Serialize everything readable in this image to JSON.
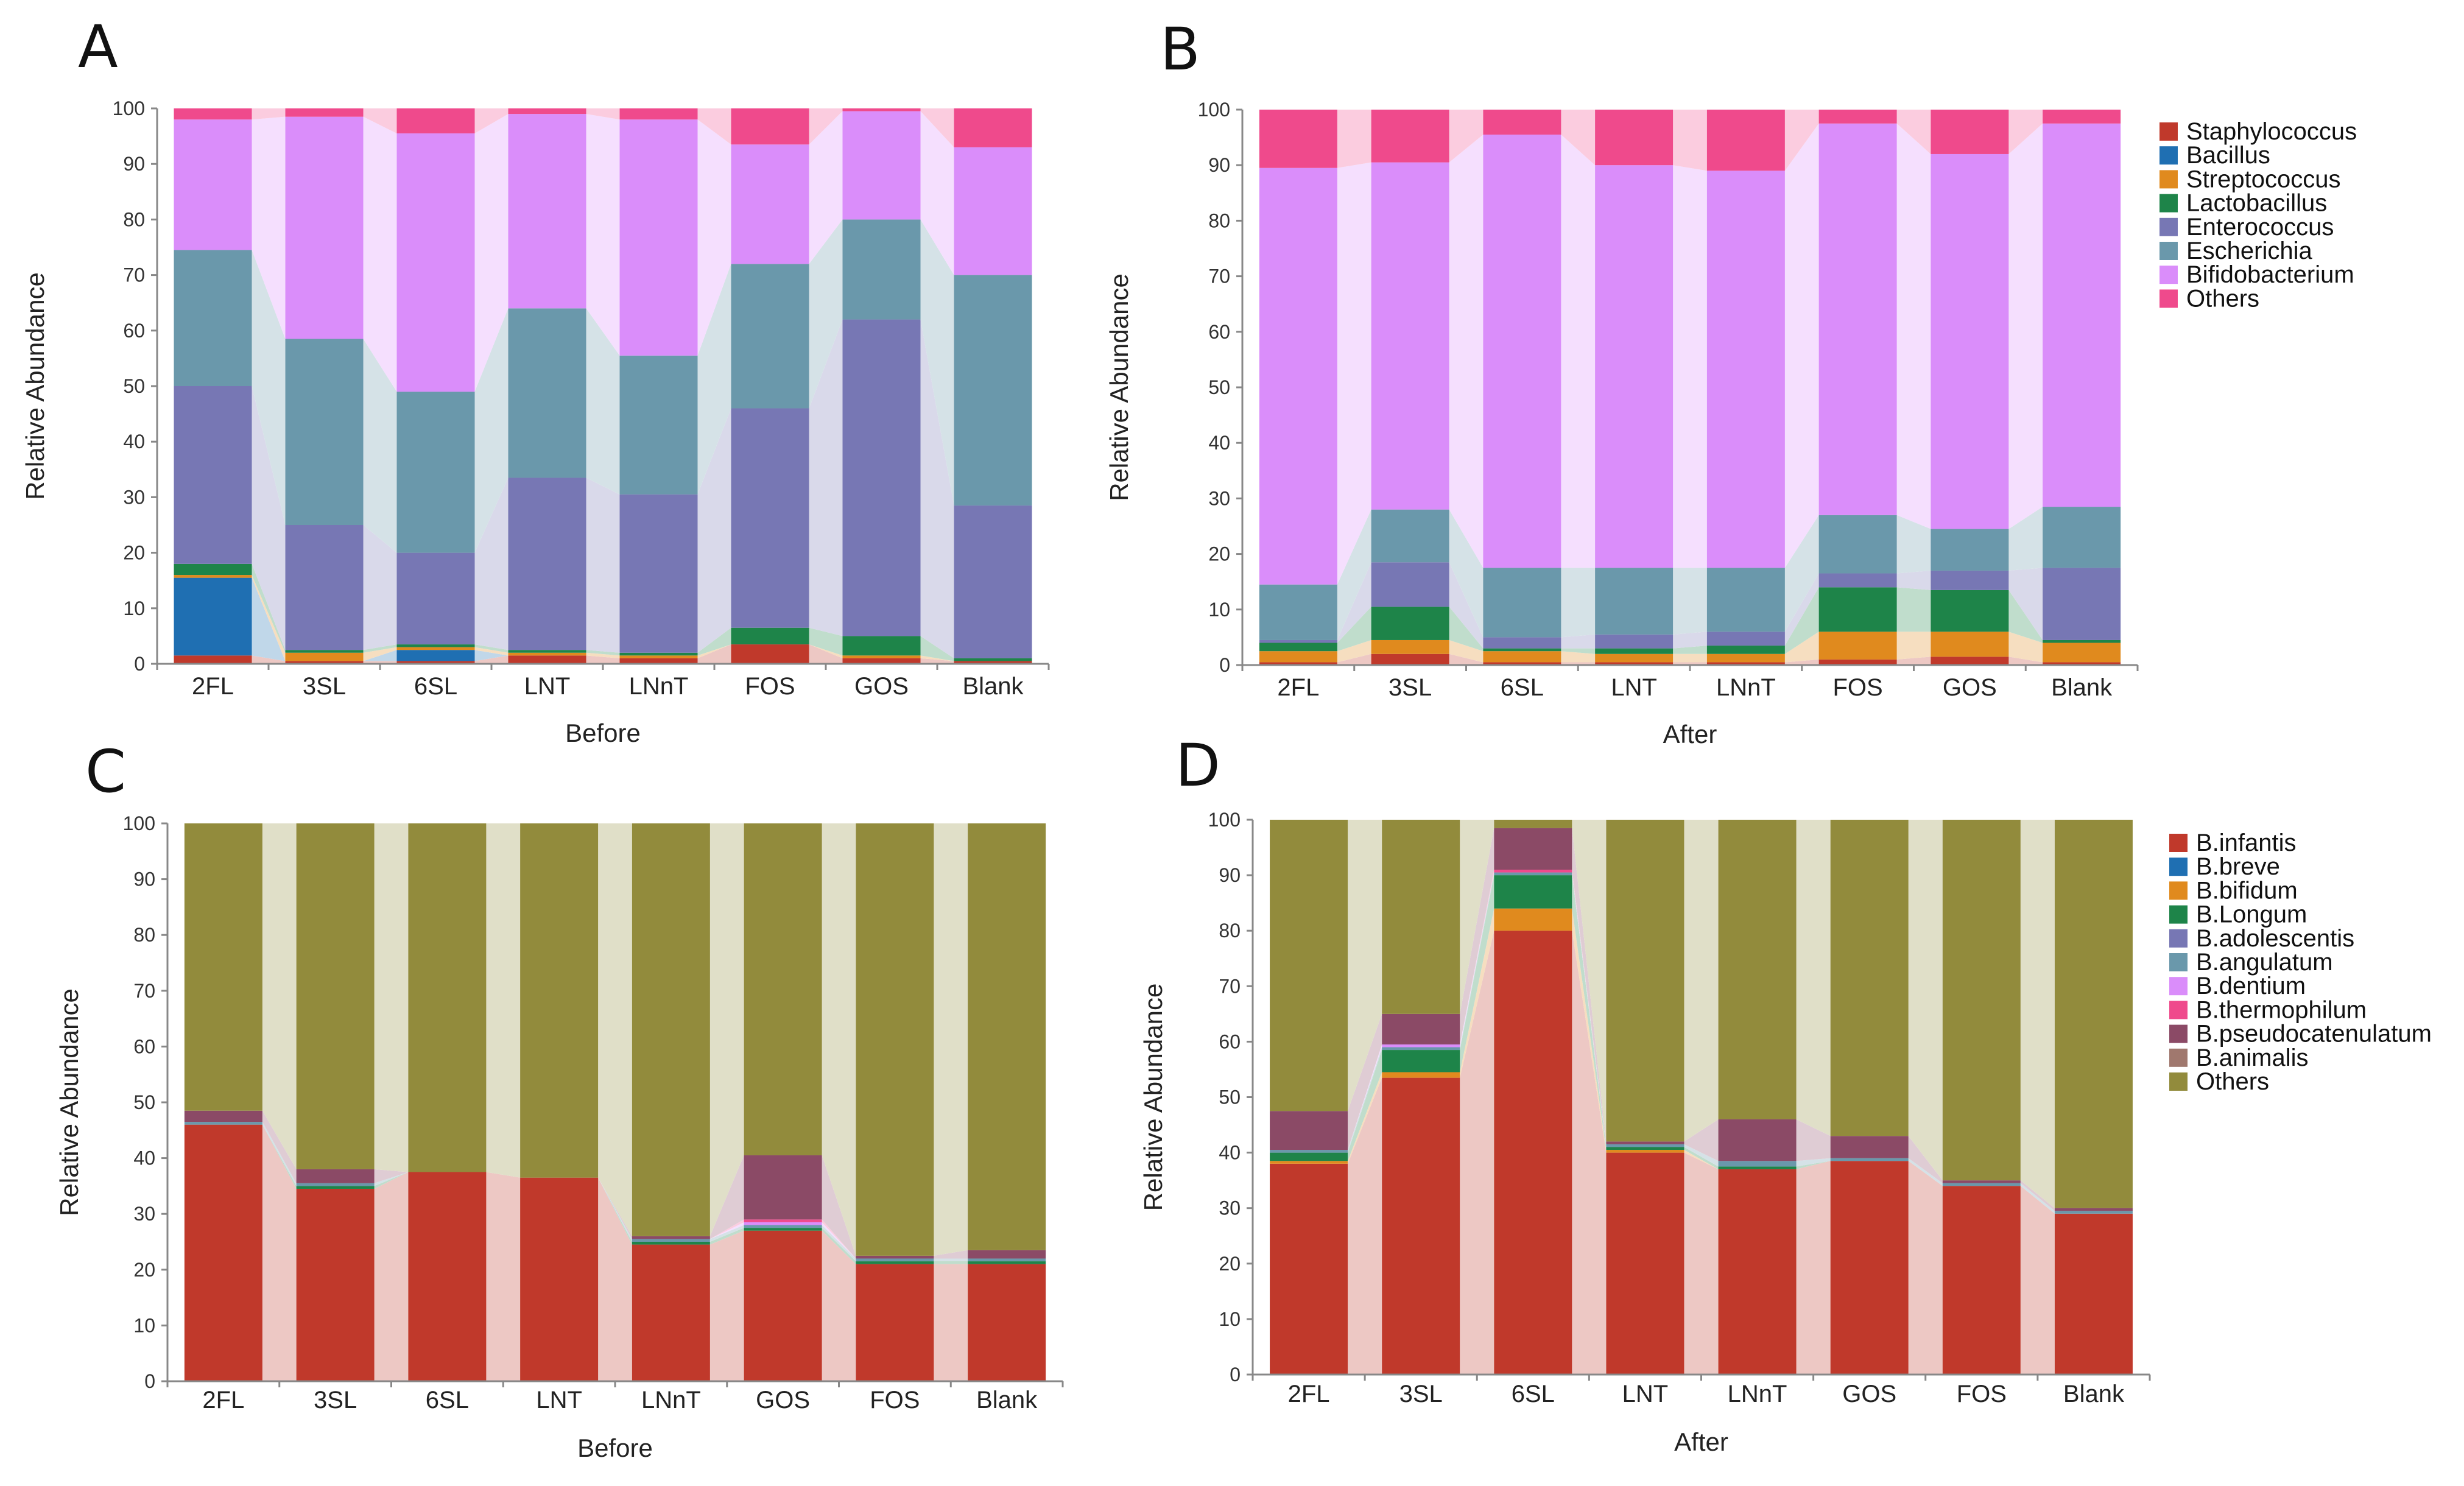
{
  "chart_data": [
    {
      "panel": "A",
      "type": "bar",
      "stacked": true,
      "xlabel": "Before",
      "ylabel": "Relative Abundance",
      "ylim": [
        0,
        100
      ],
      "yticks": [
        "0",
        "10",
        "20",
        "30",
        "40",
        "50",
        "60",
        "70",
        "80",
        "90",
        "100"
      ],
      "legend": "genus",
      "categories": [
        "2FL",
        "3SL",
        "6SL",
        "LNT",
        "LNnT",
        "FOS",
        "GOS",
        "Blank"
      ],
      "series": [
        {
          "name": "Staphylococcus",
          "values": [
            1.5,
            0.5,
            0.5,
            1.5,
            1.0,
            3.5,
            1.0,
            0.5
          ]
        },
        {
          "name": "Bacillus",
          "values": [
            14.0,
            0.0,
            2.0,
            0.0,
            0.0,
            0.0,
            0.0,
            0.0
          ]
        },
        {
          "name": "Streptococcus",
          "values": [
            0.5,
            1.5,
            0.5,
            0.5,
            0.5,
            0.0,
            0.5,
            0.0
          ]
        },
        {
          "name": "Lactobacillus",
          "values": [
            2.0,
            0.5,
            0.5,
            0.5,
            0.5,
            3.0,
            3.5,
            0.5
          ]
        },
        {
          "name": "Enterococcus",
          "values": [
            32.0,
            22.5,
            16.5,
            31.0,
            28.5,
            39.5,
            57.0,
            27.5
          ]
        },
        {
          "name": "Escherichia",
          "values": [
            24.5,
            33.5,
            29.0,
            30.5,
            25.0,
            26.0,
            18.0,
            41.5
          ]
        },
        {
          "name": "Bifidobacterium",
          "values": [
            23.5,
            40.0,
            46.5,
            35.0,
            42.5,
            21.5,
            19.5,
            23.0
          ]
        },
        {
          "name": "Others",
          "values": [
            2.0,
            1.5,
            4.5,
            1.0,
            2.0,
            6.5,
            0.5,
            7.0
          ]
        }
      ]
    },
    {
      "panel": "B",
      "type": "bar",
      "stacked": true,
      "xlabel": "After",
      "ylabel": "Relative Abundance",
      "ylim": [
        0,
        100
      ],
      "yticks": [
        "0",
        "10",
        "20",
        "30",
        "40",
        "50",
        "60",
        "70",
        "80",
        "90",
        "100"
      ],
      "legend": "genus",
      "categories": [
        "2FL",
        "3SL",
        "6SL",
        "LNT",
        "LNnT",
        "FOS",
        "GOS",
        "Blank"
      ],
      "series": [
        {
          "name": "Staphylococcus",
          "values": [
            0.5,
            2.0,
            0.5,
            0.5,
            0.5,
            1.0,
            1.5,
            0.5
          ]
        },
        {
          "name": "Bacillus",
          "values": [
            0.0,
            0.0,
            0.0,
            0.0,
            0.0,
            0.0,
            0.0,
            0.0
          ]
        },
        {
          "name": "Streptococcus",
          "values": [
            2.0,
            2.5,
            2.0,
            1.5,
            1.5,
            5.0,
            4.5,
            3.5
          ]
        },
        {
          "name": "Lactobacillus",
          "values": [
            1.5,
            6.0,
            0.5,
            1.0,
            1.5,
            8.0,
            7.5,
            0.5
          ]
        },
        {
          "name": "Enterococcus",
          "values": [
            0.5,
            8.0,
            2.0,
            2.5,
            2.5,
            2.5,
            3.5,
            13.0
          ]
        },
        {
          "name": "Escherichia",
          "values": [
            10.0,
            9.5,
            12.5,
            12.0,
            11.5,
            10.5,
            7.5,
            11.0
          ]
        },
        {
          "name": "Bifidobacterium",
          "values": [
            75.0,
            62.5,
            78.0,
            72.5,
            71.5,
            70.5,
            67.5,
            69.0
          ]
        },
        {
          "name": "Others",
          "values": [
            10.5,
            9.5,
            4.5,
            10.0,
            11.0,
            2.5,
            8.0,
            2.5
          ]
        }
      ]
    },
    {
      "panel": "C",
      "type": "bar",
      "stacked": true,
      "xlabel": "Before",
      "ylabel": "Relative Abundance",
      "ylim": [
        0,
        100
      ],
      "yticks": [
        "0",
        "10",
        "20",
        "30",
        "40",
        "50",
        "60",
        "70",
        "80",
        "90",
        "100"
      ],
      "legend": "species",
      "categories": [
        "2FL",
        "3SL",
        "6SL",
        "LNT",
        "LNnT",
        "GOS",
        "FOS",
        "Blank"
      ],
      "series": [
        {
          "name": "B.infantis",
          "values": [
            46.0,
            34.5,
            37.5,
            36.5,
            24.5,
            27.0,
            21.0,
            21.0
          ]
        },
        {
          "name": "B.breve",
          "values": [
            0.0,
            0.0,
            0.0,
            0.0,
            0.0,
            0.0,
            0.0,
            0.0
          ]
        },
        {
          "name": "B.bifidum",
          "values": [
            0.0,
            0.0,
            0.0,
            0.0,
            0.0,
            0.0,
            0.0,
            0.0
          ]
        },
        {
          "name": "B.Longum",
          "values": [
            0.0,
            0.5,
            0.0,
            0.0,
            0.5,
            0.5,
            0.5,
            0.5
          ]
        },
        {
          "name": "B.adolescentis",
          "values": [
            0.0,
            0.0,
            0.0,
            0.0,
            0.0,
            0.0,
            0.0,
            0.0
          ]
        },
        {
          "name": "B.angulatum",
          "values": [
            0.5,
            0.5,
            0.0,
            0.0,
            0.5,
            0.5,
            0.5,
            0.5
          ]
        },
        {
          "name": "B.dentium",
          "values": [
            0.0,
            0.0,
            0.0,
            0.0,
            0.0,
            0.5,
            0.0,
            0.0
          ]
        },
        {
          "name": "B.thermophilum",
          "values": [
            0.0,
            0.0,
            0.0,
            0.0,
            0.0,
            0.5,
            0.0,
            0.0
          ]
        },
        {
          "name": "B.pseudocatenulatum",
          "values": [
            2.0,
            2.5,
            0.0,
            0.0,
            0.5,
            11.5,
            0.5,
            1.5
          ]
        },
        {
          "name": "B.animalis",
          "values": [
            0.0,
            0.0,
            0.0,
            0.0,
            0.0,
            0.0,
            0.0,
            0.0
          ]
        },
        {
          "name": "Others",
          "values": [
            51.5,
            62.0,
            62.5,
            63.5,
            74.0,
            59.5,
            77.5,
            76.5
          ]
        }
      ]
    },
    {
      "panel": "D",
      "type": "bar",
      "stacked": true,
      "xlabel": "After",
      "ylabel": "Relative Abundance",
      "ylim": [
        0,
        100
      ],
      "yticks": [
        "0",
        "10",
        "20",
        "30",
        "40",
        "50",
        "60",
        "70",
        "80",
        "90",
        "100"
      ],
      "legend": "species",
      "categories": [
        "2FL",
        "3SL",
        "6SL",
        "LNT",
        "LNnT",
        "GOS",
        "FOS",
        "Blank"
      ],
      "series": [
        {
          "name": "B.infantis",
          "values": [
            38.0,
            53.5,
            80.0,
            40.0,
            37.0,
            38.5,
            34.0,
            29.0
          ]
        },
        {
          "name": "B.breve",
          "values": [
            0.0,
            0.0,
            0.0,
            0.0,
            0.0,
            0.0,
            0.0,
            0.0
          ]
        },
        {
          "name": "B.bifidum",
          "values": [
            0.5,
            1.0,
            4.0,
            0.5,
            0.0,
            0.0,
            0.0,
            0.0
          ]
        },
        {
          "name": "B.Longum",
          "values": [
            1.5,
            4.0,
            6.0,
            0.5,
            0.5,
            0.0,
            0.0,
            0.0
          ]
        },
        {
          "name": "B.adolescentis",
          "values": [
            0.0,
            0.0,
            0.0,
            0.0,
            0.0,
            0.0,
            0.0,
            0.0
          ]
        },
        {
          "name": "B.angulatum",
          "values": [
            0.5,
            0.5,
            0.5,
            0.5,
            1.0,
            0.5,
            0.5,
            0.5
          ]
        },
        {
          "name": "B.dentium",
          "values": [
            0.0,
            0.5,
            0.0,
            0.0,
            0.0,
            0.0,
            0.0,
            0.0
          ]
        },
        {
          "name": "B.thermophilum",
          "values": [
            0.0,
            0.0,
            0.5,
            0.0,
            0.0,
            0.0,
            0.0,
            0.0
          ]
        },
        {
          "name": "B.pseudocatenulatum",
          "values": [
            7.0,
            5.5,
            7.5,
            0.5,
            7.5,
            4.0,
            0.5,
            0.5
          ]
        },
        {
          "name": "B.animalis",
          "values": [
            0.0,
            0.0,
            0.0,
            0.0,
            0.0,
            0.0,
            0.0,
            0.0
          ]
        },
        {
          "name": "Others",
          "values": [
            52.5,
            35.0,
            1.5,
            58.0,
            54.0,
            57.0,
            65.0,
            70.0
          ]
        }
      ]
    }
  ],
  "legends": {
    "genus": [
      {
        "name": "Staphylococcus",
        "color": "#c0392b"
      },
      {
        "name": "Bacillus",
        "color": "#1f6fb2"
      },
      {
        "name": "Streptococcus",
        "color": "#e08a1e"
      },
      {
        "name": "Lactobacillus",
        "color": "#1e8449"
      },
      {
        "name": "Enterococcus",
        "color": "#7777b4"
      },
      {
        "name": "Escherichia",
        "color": "#6a98ab"
      },
      {
        "name": "Bifidobacterium",
        "color": "#da8dfa"
      },
      {
        "name": "Others",
        "color": "#ef4a8c"
      }
    ],
    "species": [
      {
        "name": "B.infantis",
        "color": "#c0392b"
      },
      {
        "name": "B.breve",
        "color": "#1f6fb2"
      },
      {
        "name": "B.bifidum",
        "color": "#e08a1e"
      },
      {
        "name": "B.Longum",
        "color": "#1e8449"
      },
      {
        "name": "B.adolescentis",
        "color": "#7777b4"
      },
      {
        "name": "B.angulatum",
        "color": "#6a98ab"
      },
      {
        "name": "B.dentium",
        "color": "#da8dfa"
      },
      {
        "name": "B.thermophilum",
        "color": "#ef4a8c"
      },
      {
        "name": "B.pseudocatenulatum",
        "color": "#8b4a66"
      },
      {
        "name": "B.animalis",
        "color": "#a0786e"
      },
      {
        "name": "Others",
        "color": "#928b3c"
      }
    ]
  }
}
